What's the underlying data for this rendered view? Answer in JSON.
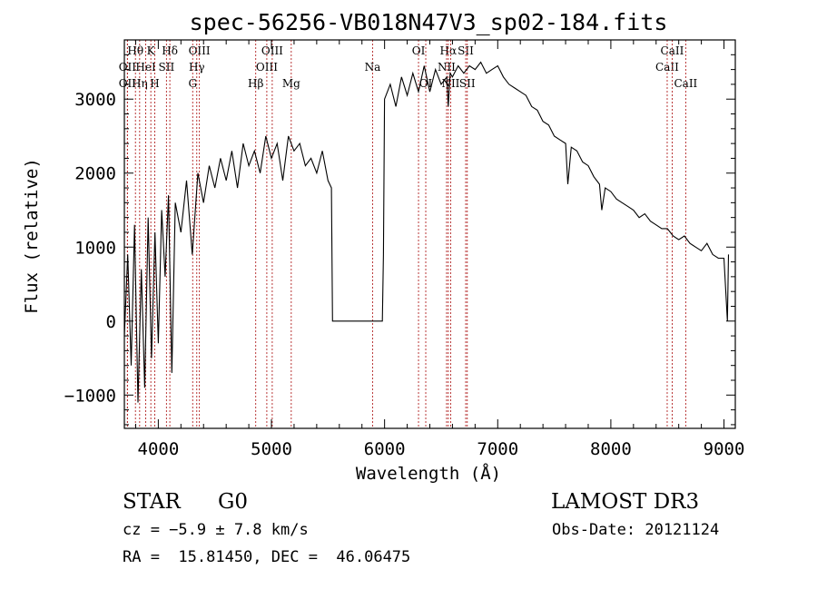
{
  "chart_data": {
    "type": "line",
    "title": "spec-56256-VB018N47V3_sp02-184.fits",
    "xlabel": "Wavelength (Å)",
    "ylabel": "Flux (relative)",
    "xlim": [
      3700,
      9100
    ],
    "ylim": [
      -1450,
      3800
    ],
    "xticks": [
      4000,
      5000,
      6000,
      7000,
      8000,
      9000
    ],
    "yticks": [
      -1000,
      0,
      1000,
      2000,
      3000
    ],
    "xtick_labels": [
      "4000",
      "5000",
      "6000",
      "7000",
      "8000",
      "9000"
    ],
    "ytick_labels": [
      "−1000",
      "0",
      "1000",
      "2000",
      "3000"
    ],
    "line_color": "#000000",
    "marker_color": "#b22222",
    "series": [
      {
        "name": "spectrum",
        "x": [
          3700,
          3730,
          3760,
          3790,
          3820,
          3850,
          3880,
          3910,
          3940,
          3970,
          4000,
          4030,
          4060,
          4090,
          4120,
          4150,
          4200,
          4250,
          4300,
          4350,
          4400,
          4450,
          4500,
          4550,
          4600,
          4650,
          4700,
          4750,
          4800,
          4850,
          4900,
          4950,
          5000,
          5050,
          5100,
          5150,
          5200,
          5250,
          5300,
          5350,
          5400,
          5450,
          5500,
          5530,
          5540,
          5560,
          5580,
          5980,
          5990,
          6000,
          6050,
          6100,
          6150,
          6200,
          6250,
          6300,
          6350,
          6400,
          6450,
          6500,
          6550,
          6563,
          6580,
          6600,
          6650,
          6700,
          6750,
          6800,
          6850,
          6900,
          6950,
          7000,
          7050,
          7100,
          7150,
          7200,
          7250,
          7300,
          7350,
          7400,
          7450,
          7500,
          7550,
          7600,
          7620,
          7650,
          7700,
          7750,
          7800,
          7850,
          7900,
          7920,
          7950,
          8000,
          8050,
          8100,
          8150,
          8200,
          8250,
          8300,
          8350,
          8400,
          8450,
          8500,
          8550,
          8600,
          8650,
          8700,
          8750,
          8800,
          8850,
          8900,
          8950,
          9000,
          9030,
          9040
        ],
        "y": [
          -200,
          900,
          -600,
          1300,
          -1100,
          700,
          -900,
          1400,
          -500,
          1200,
          -300,
          1500,
          600,
          1700,
          -700,
          1600,
          1200,
          1900,
          900,
          2000,
          1600,
          2100,
          1800,
          2200,
          1900,
          2300,
          1800,
          2400,
          2100,
          2300,
          2000,
          2500,
          2200,
          2400,
          1900,
          2500,
          2300,
          2400,
          2100,
          2200,
          2000,
          2300,
          1900,
          1800,
          0,
          0,
          0,
          0,
          900,
          3000,
          3200,
          2900,
          3300,
          3050,
          3350,
          3100,
          3450,
          3100,
          3400,
          3200,
          3300,
          2900,
          3350,
          3300,
          3450,
          3350,
          3450,
          3400,
          3500,
          3350,
          3400,
          3450,
          3300,
          3200,
          3150,
          3100,
          3050,
          2900,
          2850,
          2700,
          2650,
          2500,
          2450,
          2400,
          1850,
          2350,
          2300,
          2150,
          2100,
          1950,
          1850,
          1500,
          1800,
          1750,
          1650,
          1600,
          1550,
          1500,
          1400,
          1450,
          1350,
          1300,
          1250,
          1250,
          1150,
          1100,
          1150,
          1050,
          1000,
          950,
          1050,
          900,
          850,
          850,
          0,
          900
        ]
      }
    ],
    "lines": [
      {
        "label": "Hθ",
        "x": 3798,
        "row": 0
      },
      {
        "label": "OII",
        "x": 3727,
        "row": 1
      },
      {
        "label": "OII",
        "x": 3727,
        "row": 2
      },
      {
        "label": "Hη",
        "x": 3835,
        "row": 2
      },
      {
        "label": "HeI",
        "x": 3889,
        "row": 1
      },
      {
        "label": "K",
        "x": 3934,
        "row": 0
      },
      {
        "label": "H",
        "x": 3969,
        "row": 2
      },
      {
        "label": "SII",
        "x": 4072,
        "row": 1
      },
      {
        "label": "Hδ",
        "x": 4102,
        "row": 0
      },
      {
        "label": "OIII",
        "x": 4363,
        "row": 0
      },
      {
        "label": "Hγ",
        "x": 4340,
        "row": 1
      },
      {
        "label": "G",
        "x": 4304,
        "row": 2
      },
      {
        "label": "Hβ",
        "x": 4861,
        "row": 2
      },
      {
        "label": "OIII",
        "x": 4959,
        "row": 1
      },
      {
        "label": "OIII",
        "x": 5007,
        "row": 0
      },
      {
        "label": "Mg",
        "x": 5175,
        "row": 2
      },
      {
        "label": "Na",
        "x": 5894,
        "row": 1
      },
      {
        "label": "OI",
        "x": 6300,
        "row": 0
      },
      {
        "label": "OI",
        "x": 6364,
        "row": 2
      },
      {
        "label": "Hα",
        "x": 6563,
        "row": 0
      },
      {
        "label": "NII",
        "x": 6548,
        "row": 1
      },
      {
        "label": "NII",
        "x": 6584,
        "row": 2
      },
      {
        "label": "SII",
        "x": 6717,
        "row": 0
      },
      {
        "label": "SII",
        "x": 6731,
        "row": 2
      },
      {
        "label": "CaII",
        "x": 8498,
        "row": 1
      },
      {
        "label": "CaII",
        "x": 8542,
        "row": 0
      },
      {
        "label": "CaII",
        "x": 8662,
        "row": 2
      }
    ]
  },
  "info": {
    "class": "STAR",
    "subclass": "G0",
    "survey": "LAMOST DR3",
    "cz": "cz = −5.9 ± 7.8 km/s",
    "obs_date": "Obs-Date: 20121124",
    "coords": "RA =  15.81450, DEC =  46.06475"
  }
}
